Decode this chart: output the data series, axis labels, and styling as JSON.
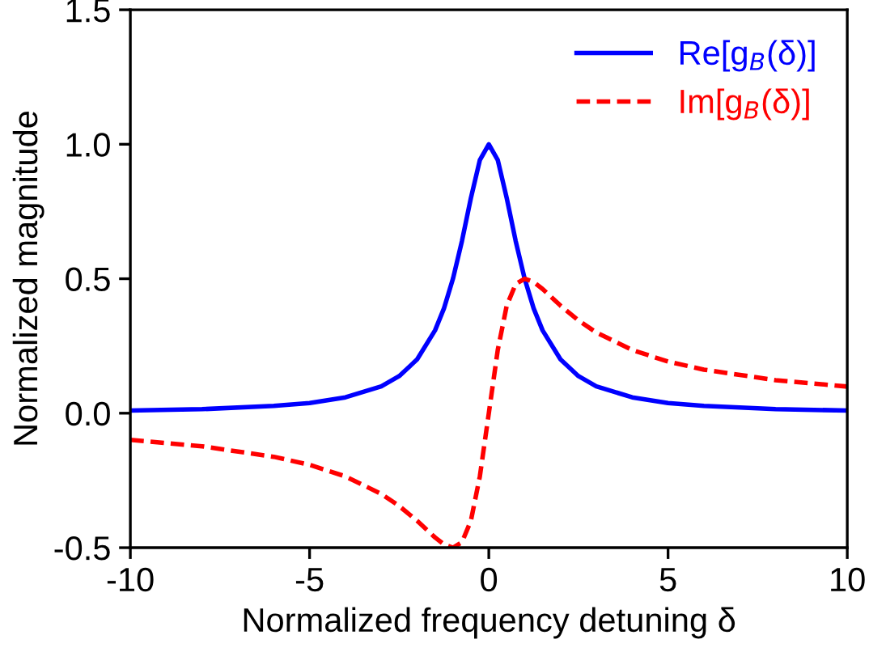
{
  "chart_data": {
    "type": "line",
    "xlabel": "Normalized frequency detuning δ",
    "ylabel": "Normalized magnitude",
    "x": [
      -10,
      -8,
      -6,
      -5,
      -4,
      -3,
      -2.5,
      -2,
      -1.5,
      -1.25,
      -1,
      -0.75,
      -0.5,
      -0.25,
      0,
      0.25,
      0.5,
      0.75,
      1,
      1.25,
      1.5,
      2,
      2.5,
      3,
      4,
      5,
      6,
      8,
      10
    ],
    "series": [
      {
        "name": "Re[g$_{B}$(δ)]",
        "color": "#0000ff",
        "line_style": "solid",
        "values": [
          0.01,
          0.015,
          0.027,
          0.038,
          0.059,
          0.1,
          0.138,
          0.2,
          0.308,
          0.39,
          0.5,
          0.64,
          0.8,
          0.941,
          1,
          0.941,
          0.8,
          0.64,
          0.5,
          0.39,
          0.308,
          0.2,
          0.138,
          0.1,
          0.059,
          0.038,
          0.027,
          0.015,
          0.01
        ]
      },
      {
        "name": "Im[g$_{B}$(δ)]",
        "color": "#ff0000",
        "line_style": "dashed",
        "values": [
          -0.099,
          -0.123,
          -0.162,
          -0.192,
          -0.235,
          -0.3,
          -0.345,
          -0.4,
          -0.462,
          -0.488,
          -0.5,
          -0.48,
          -0.4,
          -0.235,
          0,
          0.235,
          0.4,
          0.48,
          0.5,
          0.488,
          0.462,
          0.4,
          0.345,
          0.3,
          0.235,
          0.192,
          0.162,
          0.123,
          0.099
        ]
      }
    ],
    "xlim": [
      -10,
      10
    ],
    "xticks": [
      -10,
      -5,
      0,
      5,
      10
    ],
    "ylim": [
      -0.5,
      1.5
    ],
    "yticks": [
      {
        "value": -0.5,
        "label": "-0.5"
      },
      {
        "value": 0,
        "label": "0.0"
      },
      {
        "value": 0.5,
        "label": "0.5"
      },
      {
        "value": 1,
        "label": "1.0"
      },
      {
        "value": 1.5,
        "label": "1.5"
      }
    ],
    "legend": "top right",
    "grid": false
  }
}
